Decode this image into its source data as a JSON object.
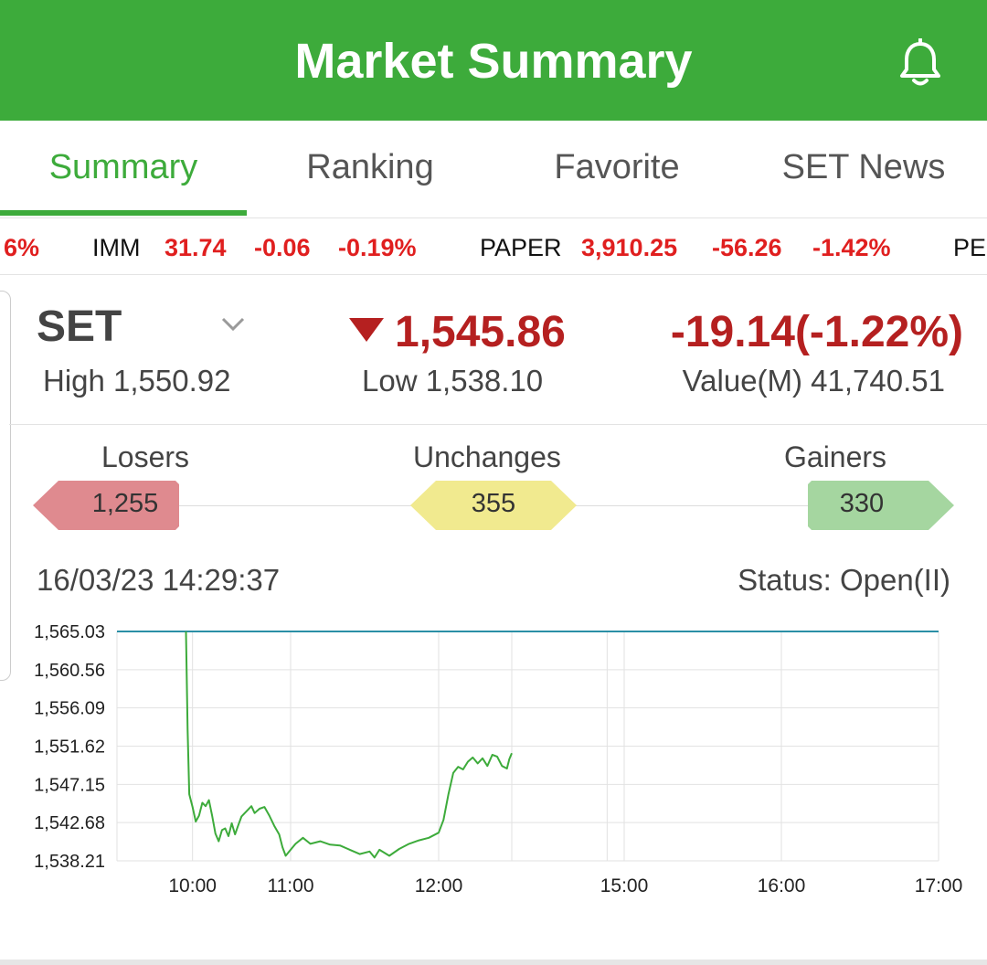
{
  "header": {
    "title": "Market Summary",
    "icon": "bell-icon"
  },
  "tabs": [
    {
      "label": "Summary",
      "active": true
    },
    {
      "label": "Ranking",
      "active": false
    },
    {
      "label": "Favorite",
      "active": false
    },
    {
      "label": "SET News",
      "active": false
    }
  ],
  "ticker": {
    "lead_fragment": "6%",
    "items": [
      {
        "name": "IMM",
        "last": "31.74",
        "change": "-0.06",
        "pct": "-0.19%"
      },
      {
        "name": "PAPER",
        "last": "3,910.25",
        "change": "-56.26",
        "pct": "-1.42%"
      }
    ],
    "tail_fragment": "PE"
  },
  "index": {
    "name": "SET",
    "value": "1,545.86",
    "change": "-19.14(-1.22%)",
    "high": "High 1,550.92",
    "low": "Low 1,538.10",
    "value_m": "Value(M) 41,740.51",
    "direction": "down",
    "color": "#b52020"
  },
  "breadth": {
    "losers": {
      "label": "Losers",
      "count": "1,255",
      "color": "#df8a8f"
    },
    "unchanges": {
      "label": "Unchanges",
      "count": "355",
      "color": "#f1ea8f"
    },
    "gainers": {
      "label": "Gainers",
      "count": "330",
      "color": "#a5d6a0"
    }
  },
  "datetime": "16/03/23 14:29:37",
  "status": "Status: Open(II)",
  "chart_data": {
    "type": "line",
    "y_ticks": [
      "1,565.03",
      "1,560.56",
      "1,556.09",
      "1,551.62",
      "1,547.15",
      "1,542.68",
      "1,538.21"
    ],
    "x_ticks": [
      "10:00",
      "11:00",
      "12:00",
      "15:00",
      "16:00",
      "17:00"
    ],
    "ylim": [
      1538.21,
      1565.03
    ],
    "reference_line": 1565.03,
    "series": [
      {
        "color": "#3dab3b",
        "points": [
          [
            "9:56",
            1565.03
          ],
          [
            "9:57",
            1553.5
          ],
          [
            "9:58",
            1546.0
          ],
          [
            "10:00",
            1544.5
          ],
          [
            "10:02",
            1542.8
          ],
          [
            "10:04",
            1543.5
          ],
          [
            "10:06",
            1545.0
          ],
          [
            "10:08",
            1544.6
          ],
          [
            "10:10",
            1545.3
          ],
          [
            "10:12",
            1543.5
          ],
          [
            "10:14",
            1541.4
          ],
          [
            "10:16",
            1540.5
          ],
          [
            "10:18",
            1541.8
          ],
          [
            "10:20",
            1542.0
          ],
          [
            "10:22",
            1541.1
          ],
          [
            "10:24",
            1542.6
          ],
          [
            "10:26",
            1541.3
          ],
          [
            "10:28",
            1542.4
          ],
          [
            "10:30",
            1543.4
          ],
          [
            "10:33",
            1544.0
          ],
          [
            "10:36",
            1544.6
          ],
          [
            "10:38",
            1543.8
          ],
          [
            "10:41",
            1544.3
          ],
          [
            "10:44",
            1544.5
          ],
          [
            "10:47",
            1543.5
          ],
          [
            "10:50",
            1542.3
          ],
          [
            "10:53",
            1541.3
          ],
          [
            "10:55",
            1539.8
          ],
          [
            "10:57",
            1538.8
          ],
          [
            "11:00",
            1539.5
          ],
          [
            "11:02",
            1540.2
          ],
          [
            "11:05",
            1540.9
          ],
          [
            "11:08",
            1540.2
          ],
          [
            "11:12",
            1540.5
          ],
          [
            "11:16",
            1540.1
          ],
          [
            "11:20",
            1540.0
          ],
          [
            "11:24",
            1539.5
          ],
          [
            "11:28",
            1539.0
          ],
          [
            "11:32",
            1539.3
          ],
          [
            "11:34",
            1538.6
          ],
          [
            "11:36",
            1539.5
          ],
          [
            "11:40",
            1538.8
          ],
          [
            "11:44",
            1539.6
          ],
          [
            "11:48",
            1540.2
          ],
          [
            "11:52",
            1540.6
          ],
          [
            "11:56",
            1540.9
          ],
          [
            "12:00",
            1541.5
          ],
          [
            "12:02",
            1543.0
          ],
          [
            "12:04",
            1546.0
          ],
          [
            "12:06",
            1548.5
          ],
          [
            "12:08",
            1549.2
          ],
          [
            "12:10",
            1548.9
          ],
          [
            "12:12",
            1549.8
          ],
          [
            "12:14",
            1550.3
          ],
          [
            "12:16",
            1549.6
          ],
          [
            "12:18",
            1550.2
          ],
          [
            "12:20",
            1549.3
          ],
          [
            "12:22",
            1550.6
          ],
          [
            "12:24",
            1550.4
          ],
          [
            "12:26",
            1549.3
          ],
          [
            "12:28",
            1549.0
          ],
          [
            "12:29",
            1550.1
          ],
          [
            "12:30",
            1550.8
          ]
        ]
      }
    ]
  }
}
